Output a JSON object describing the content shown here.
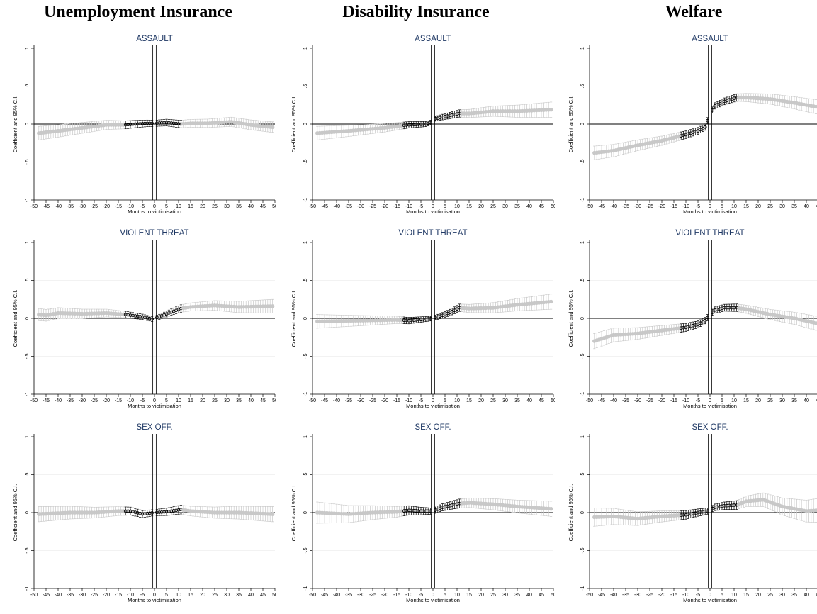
{
  "headers": [
    "Unemployment Insurance",
    "Disability Insurance",
    "Welfare"
  ],
  "colors": {
    "pre_post": "#c8c8c8",
    "window": "#000000",
    "title": "#1f3864",
    "grid": "#eeeeee"
  },
  "chart_data": [
    {
      "type": "scatter",
      "column": "Unemployment Insurance",
      "title": "ASSAULT",
      "xlabel": "Months to victimisation",
      "ylabel": "Coefficient and 95% C.I.",
      "xlim": [
        -50,
        50
      ],
      "ylim": [
        -1,
        1
      ],
      "knots": [
        [
          -48,
          -0.12
        ],
        [
          -40,
          -0.09
        ],
        [
          -30,
          -0.05
        ],
        [
          -20,
          -0.01
        ],
        [
          -12,
          -0.01
        ],
        [
          -8,
          0.0
        ],
        [
          -3,
          0.01
        ],
        [
          0,
          0.01
        ],
        [
          5,
          0.02
        ],
        [
          11,
          0.0
        ],
        [
          15,
          0.01
        ],
        [
          22,
          0.01
        ],
        [
          32,
          0.03
        ],
        [
          40,
          -0.01
        ],
        [
          49,
          -0.04
        ]
      ],
      "ci": [
        [
          -48,
          0.09
        ],
        [
          0,
          0.04
        ],
        [
          12,
          0.05
        ],
        [
          49,
          0.07
        ]
      ]
    },
    {
      "type": "scatter",
      "column": "Disability Insurance",
      "title": "ASSAULT",
      "xlabel": "Months to victimisation",
      "ylabel": "Coefficient and 95% C.I.",
      "xlim": [
        -50,
        50
      ],
      "ylim": [
        -1,
        1
      ],
      "knots": [
        [
          -48,
          -0.12
        ],
        [
          -35,
          -0.09
        ],
        [
          -20,
          -0.05
        ],
        [
          -10,
          -0.01
        ],
        [
          -3,
          0.0
        ],
        [
          0,
          0.03
        ],
        [
          1,
          0.07
        ],
        [
          5,
          0.1
        ],
        [
          11,
          0.14
        ],
        [
          15,
          0.14
        ],
        [
          25,
          0.17
        ],
        [
          35,
          0.17
        ],
        [
          49,
          0.19
        ]
      ],
      "ci": [
        [
          -48,
          0.09
        ],
        [
          0,
          0.03
        ],
        [
          12,
          0.05
        ],
        [
          49,
          0.1
        ]
      ]
    },
    {
      "type": "scatter",
      "column": "Welfare",
      "title": "ASSAULT",
      "xlabel": "Months to victimisation",
      "ylabel": "Coefficient and 95% C.I.",
      "xlim": [
        -50,
        50
      ],
      "ylim": [
        -1,
        1
      ],
      "knots": [
        [
          -48,
          -0.38
        ],
        [
          -40,
          -0.35
        ],
        [
          -30,
          -0.28
        ],
        [
          -20,
          -0.22
        ],
        [
          -10,
          -0.14
        ],
        [
          -5,
          -0.09
        ],
        [
          -2,
          -0.04
        ],
        [
          0,
          0.13
        ],
        [
          2,
          0.24
        ],
        [
          6,
          0.3
        ],
        [
          11,
          0.35
        ],
        [
          15,
          0.35
        ],
        [
          25,
          0.33
        ],
        [
          35,
          0.28
        ],
        [
          49,
          0.2
        ]
      ],
      "ci": [
        [
          -48,
          0.09
        ],
        [
          0,
          0.04
        ],
        [
          12,
          0.05
        ],
        [
          49,
          0.1
        ]
      ]
    },
    {
      "type": "scatter",
      "column": "Unemployment Insurance",
      "title": "VIOLENT THREAT",
      "xlabel": "Months to victimisation",
      "ylabel": "Coefficient and 95% C.I.",
      "xlim": [
        -50,
        50
      ],
      "ylim": [
        -1,
        1
      ],
      "knots": [
        [
          -48,
          0.05
        ],
        [
          -45,
          0.04
        ],
        [
          -40,
          0.07
        ],
        [
          -30,
          0.06
        ],
        [
          -20,
          0.07
        ],
        [
          -12,
          0.05
        ],
        [
          -5,
          0.02
        ],
        [
          -1,
          -0.01
        ],
        [
          2,
          0.02
        ],
        [
          6,
          0.07
        ],
        [
          11,
          0.13
        ],
        [
          15,
          0.15
        ],
        [
          25,
          0.17
        ],
        [
          35,
          0.15
        ],
        [
          49,
          0.16
        ]
      ],
      "ci": [
        [
          -48,
          0.08
        ],
        [
          0,
          0.03
        ],
        [
          12,
          0.05
        ],
        [
          49,
          0.09
        ]
      ]
    },
    {
      "type": "scatter",
      "column": "Disability Insurance",
      "title": "VIOLENT THREAT",
      "xlabel": "Months to victimisation",
      "ylabel": "Coefficient and 95% C.I.",
      "xlim": [
        -50,
        50
      ],
      "ylim": [
        -1,
        1
      ],
      "knots": [
        [
          -48,
          -0.04
        ],
        [
          -30,
          -0.03
        ],
        [
          -15,
          -0.02
        ],
        [
          -10,
          -0.03
        ],
        [
          -3,
          -0.01
        ],
        [
          0,
          0.0
        ],
        [
          4,
          0.04
        ],
        [
          8,
          0.09
        ],
        [
          11,
          0.14
        ],
        [
          15,
          0.13
        ],
        [
          25,
          0.14
        ],
        [
          35,
          0.18
        ],
        [
          49,
          0.22
        ]
      ],
      "ci": [
        [
          -48,
          0.09
        ],
        [
          0,
          0.03
        ],
        [
          12,
          0.05
        ],
        [
          49,
          0.1
        ]
      ]
    },
    {
      "type": "scatter",
      "column": "Welfare",
      "title": "VIOLENT THREAT",
      "xlabel": "Months to victimisation",
      "ylabel": "Coefficient and 95% C.I.",
      "xlim": [
        -50,
        50
      ],
      "ylim": [
        -1,
        1
      ],
      "knots": [
        [
          -48,
          -0.3
        ],
        [
          -40,
          -0.22
        ],
        [
          -30,
          -0.2
        ],
        [
          -20,
          -0.16
        ],
        [
          -10,
          -0.12
        ],
        [
          -5,
          -0.08
        ],
        [
          -2,
          -0.03
        ],
        [
          0,
          0.05
        ],
        [
          2,
          0.11
        ],
        [
          6,
          0.14
        ],
        [
          11,
          0.14
        ],
        [
          15,
          0.12
        ],
        [
          25,
          0.05
        ],
        [
          35,
          0.0
        ],
        [
          49,
          -0.1
        ]
      ],
      "ci": [
        [
          -48,
          0.1
        ],
        [
          0,
          0.04
        ],
        [
          12,
          0.05
        ],
        [
          49,
          0.1
        ]
      ]
    },
    {
      "type": "scatter",
      "column": "Unemployment Insurance",
      "title": "SEX OFF.",
      "xlabel": "Months to victimisation",
      "ylabel": "Coefficient and 95% C.I.",
      "xlim": [
        -50,
        50
      ],
      "ylim": [
        -1,
        1
      ],
      "knots": [
        [
          -48,
          -0.02
        ],
        [
          -35,
          0.0
        ],
        [
          -25,
          0.0
        ],
        [
          -15,
          0.02
        ],
        [
          -10,
          0.02
        ],
        [
          -5,
          -0.02
        ],
        [
          0,
          0.0
        ],
        [
          5,
          0.01
        ],
        [
          11,
          0.04
        ],
        [
          15,
          0.02
        ],
        [
          25,
          0.0
        ],
        [
          35,
          0.0
        ],
        [
          49,
          -0.02
        ]
      ],
      "ci": [
        [
          -48,
          0.1
        ],
        [
          0,
          0.04
        ],
        [
          12,
          0.06
        ],
        [
          49,
          0.1
        ]
      ]
    },
    {
      "type": "scatter",
      "column": "Disability Insurance",
      "title": "SEX OFF.",
      "xlabel": "Months to victimisation",
      "ylabel": "Coefficient and 95% C.I.",
      "xlim": [
        -50,
        50
      ],
      "ylim": [
        -1,
        1
      ],
      "knots": [
        [
          -48,
          0.0
        ],
        [
          -35,
          -0.02
        ],
        [
          -25,
          0.0
        ],
        [
          -15,
          0.01
        ],
        [
          -10,
          0.03
        ],
        [
          -5,
          0.02
        ],
        [
          0,
          0.02
        ],
        [
          4,
          0.07
        ],
        [
          11,
          0.12
        ],
        [
          15,
          0.13
        ],
        [
          25,
          0.11
        ],
        [
          35,
          0.08
        ],
        [
          49,
          0.05
        ]
      ],
      "ci": [
        [
          -48,
          0.14
        ],
        [
          0,
          0.04
        ],
        [
          12,
          0.06
        ],
        [
          49,
          0.1
        ]
      ]
    },
    {
      "type": "scatter",
      "column": "Welfare",
      "title": "SEX OFF.",
      "xlabel": "Months to victimisation",
      "ylabel": "Coefficient and 95% C.I.",
      "xlim": [
        -50,
        50
      ],
      "ylim": [
        -1,
        1
      ],
      "knots": [
        [
          -48,
          -0.06
        ],
        [
          -40,
          -0.05
        ],
        [
          -30,
          -0.08
        ],
        [
          -20,
          -0.05
        ],
        [
          -10,
          -0.03
        ],
        [
          -5,
          0.0
        ],
        [
          -1,
          0.02
        ],
        [
          2,
          0.07
        ],
        [
          6,
          0.09
        ],
        [
          11,
          0.1
        ],
        [
          15,
          0.15
        ],
        [
          22,
          0.17
        ],
        [
          30,
          0.08
        ],
        [
          40,
          0.02
        ],
        [
          49,
          0.04
        ]
      ],
      "ci": [
        [
          -48,
          0.12
        ],
        [
          0,
          0.04
        ],
        [
          12,
          0.06
        ],
        [
          49,
          0.17
        ]
      ]
    }
  ]
}
